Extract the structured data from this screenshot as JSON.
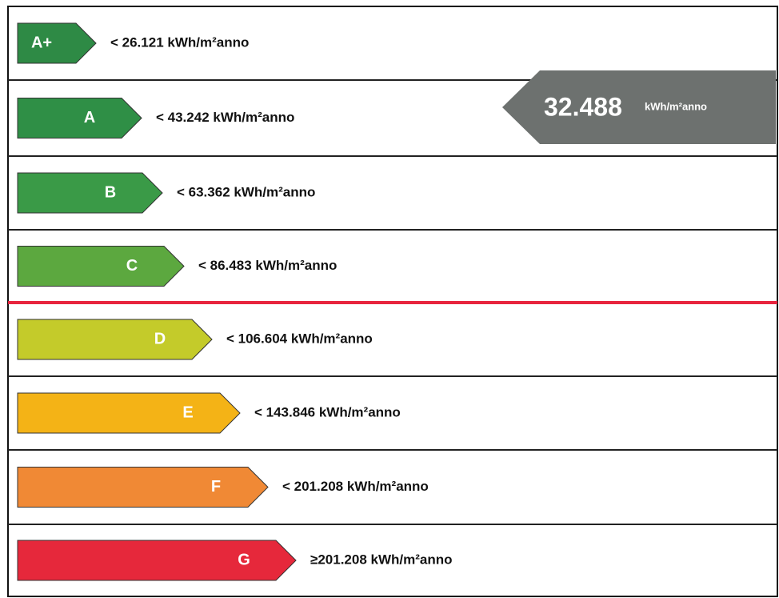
{
  "classes": [
    {
      "label": "A+",
      "threshold": "< 26.121 kWh/m²anno",
      "color": "#2e8a45"
    },
    {
      "label": "A",
      "threshold": "< 43.242 kWh/m²anno",
      "color": "#2f8f46"
    },
    {
      "label": "B",
      "threshold": "< 63.362 kWh/m²anno",
      "color": "#3a9a47"
    },
    {
      "label": "C",
      "threshold": "< 86.483 kWh/m²anno",
      "color": "#5ca83f"
    },
    {
      "label": "D",
      "threshold": "< 106.604 kWh/m²anno",
      "color": "#c4cb2a"
    },
    {
      "label": "E",
      "threshold": "< 143.846 kWh/m²anno",
      "color": "#f4b316"
    },
    {
      "label": "F",
      "threshold": "< 201.208 kWh/m²anno",
      "color": "#f08935"
    },
    {
      "label": "G",
      "threshold": "≥201.208 kWh/m²anno",
      "color": "#e6283b"
    }
  ],
  "indicator": {
    "value": "32.488",
    "unit": "kWh/m²anno",
    "color": "#6d716f"
  }
}
